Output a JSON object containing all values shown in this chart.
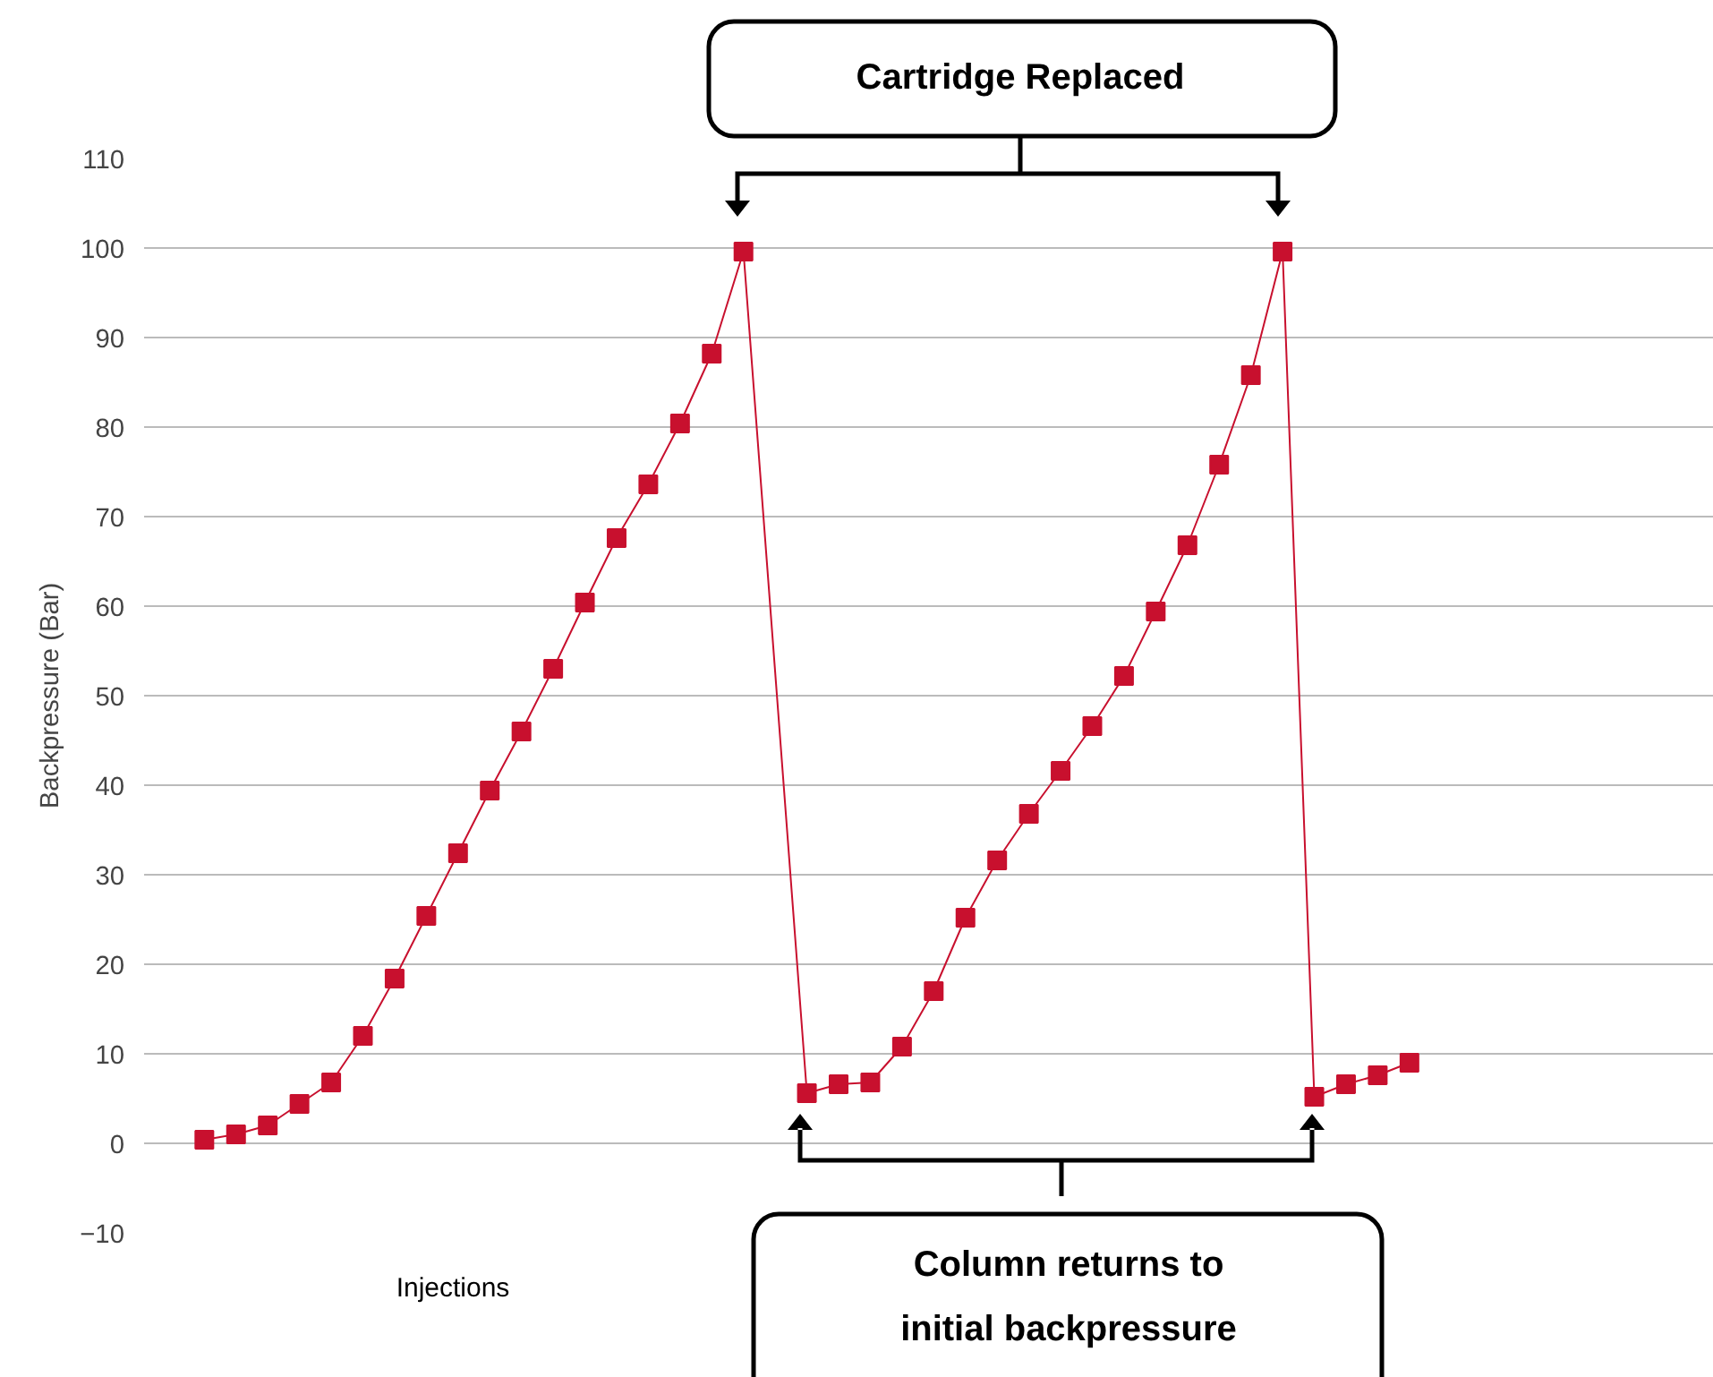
{
  "chart_data": {
    "type": "line",
    "ylabel": "Backpressure (Bar)",
    "xlabel": "Injections",
    "categories": [
      null,
      null,
      null,
      null,
      null,
      null,
      null,
      null,
      null,
      null,
      null,
      null,
      null,
      null,
      null,
      null,
      null,
      null,
      null,
      null,
      null,
      null,
      null,
      null,
      null,
      null,
      null,
      null,
      null,
      null,
      null,
      null,
      null,
      null,
      null,
      null,
      null,
      null,
      null
    ],
    "series": [
      {
        "color": "#c8102e",
        "values": [
          0.4,
          1,
          2,
          4.4,
          6.8,
          12,
          18.4,
          25.4,
          32.4,
          39.4,
          46,
          53,
          60.4,
          67.6,
          73.6,
          80.4,
          88.2,
          99.6,
          null,
          5.6,
          6.6,
          6.8,
          10.8,
          17,
          25.2,
          31.6,
          36.8,
          41.6,
          46.6,
          52.2,
          59.4,
          66.8,
          75.8,
          85.8,
          99.6,
          5.2,
          6.6,
          7.6,
          9
        ]
      }
    ],
    "marker": "square",
    "line_style": "solid",
    "ylim": [
      -10,
      110
    ],
    "yticks": [
      -10,
      0,
      10,
      20,
      30,
      40,
      50,
      60,
      70,
      80,
      90,
      100,
      110
    ],
    "grid": "y",
    "annotations": [
      "Cartridge Replaced",
      "Column returns to\ninitial backpressure"
    ]
  }
}
